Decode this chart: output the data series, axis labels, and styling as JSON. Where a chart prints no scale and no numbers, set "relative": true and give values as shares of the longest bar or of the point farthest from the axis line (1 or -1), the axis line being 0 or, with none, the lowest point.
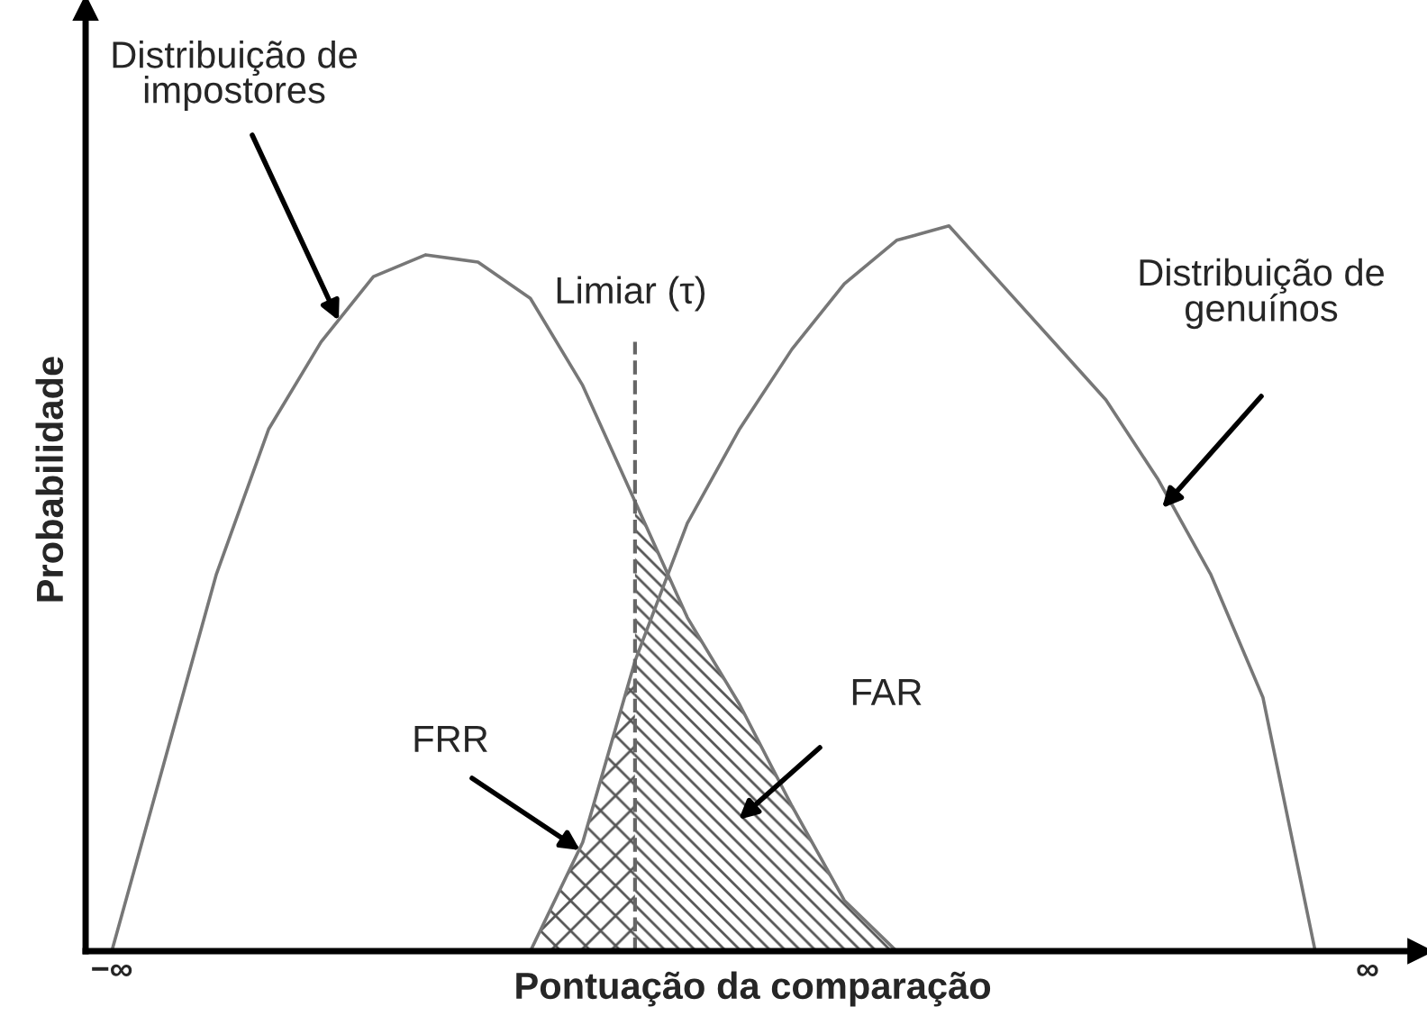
{
  "chart_data": {
    "type": "line",
    "relative": true,
    "xlabel": "Pontuação da comparação",
    "ylabel": "Probabilidade",
    "categories": [
      "−∞",
      null,
      null,
      null,
      null,
      null,
      null,
      null,
      null,
      null,
      null,
      null,
      null,
      null,
      null,
      null,
      null,
      null,
      null,
      null,
      null,
      null,
      null,
      null,
      "∞"
    ],
    "series": [
      {
        "color": "#777777",
        "values": [
          0,
          0.26,
          0.52,
          0.72,
          0.84,
          0.93,
          0.96,
          0.95,
          0.9,
          0.78,
          0.62,
          0.46,
          0.34,
          0.2,
          0.07,
          0,
          null,
          null,
          null,
          null,
          null,
          null,
          null,
          null,
          null
        ]
      },
      {
        "color": "#777777",
        "values": [
          null,
          null,
          null,
          null,
          null,
          null,
          null,
          null,
          0,
          0.15,
          0.4,
          0.59,
          0.72,
          0.83,
          0.92,
          0.98,
          1,
          0.92,
          0.84,
          0.76,
          0.65,
          0.52,
          0.35,
          0,
          null
        ]
      },
      {
        "type": "area",
        "color": "#555555",
        "values": [
          null,
          null,
          null,
          null,
          null,
          null,
          null,
          null,
          0,
          0.15,
          0.4,
          null,
          null,
          null,
          null,
          null,
          null,
          null,
          null,
          null,
          null,
          null,
          null,
          null,
          null
        ]
      },
      {
        "type": "area",
        "color": "#555555",
        "values": [
          null,
          null,
          null,
          null,
          null,
          null,
          null,
          null,
          null,
          null,
          0.62,
          0.46,
          0.34,
          0.2,
          0.07,
          0,
          null,
          null,
          null,
          null,
          null,
          null,
          null,
          null,
          null
        ]
      }
    ],
    "annotations": [
      "Distribuição de\nimpostores",
      "Limiar (τ)",
      "Distribuição de\ngenuínos",
      "FRR",
      "FAR"
    ],
    "legend": false
  }
}
